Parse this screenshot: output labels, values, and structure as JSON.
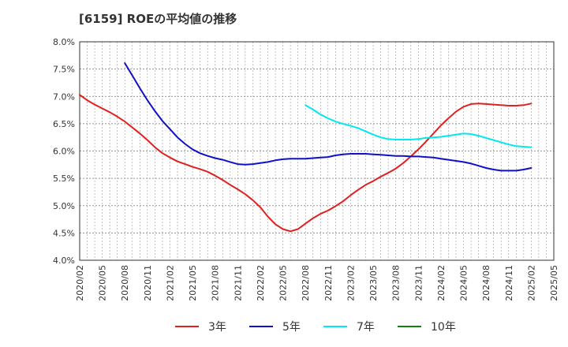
{
  "chart_data": {
    "type": "line",
    "title": "[6159]  ROEの平均値の推移",
    "ylim": [
      4.0,
      8.0
    ],
    "y_ticks": [
      "4.0%",
      "4.5%",
      "5.0%",
      "5.5%",
      "6.0%",
      "6.5%",
      "7.0%",
      "7.5%",
      "8.0%"
    ],
    "x_ticks": [
      "2020/02",
      "2020/05",
      "2020/08",
      "2020/11",
      "2021/02",
      "2021/05",
      "2021/08",
      "2021/11",
      "2022/02",
      "2022/05",
      "2022/08",
      "2022/11",
      "2023/02",
      "2023/05",
      "2023/08",
      "2023/11",
      "2024/02",
      "2024/05",
      "2024/08",
      "2024/11",
      "2025/02",
      "2025/05"
    ],
    "grid": true,
    "legend_position": "bottom",
    "series": [
      {
        "name": "3年",
        "color": "#e02020",
        "points": [
          [
            "2020/02",
            7.03
          ],
          [
            "2020/03",
            6.93
          ],
          [
            "2020/04",
            6.85
          ],
          [
            "2020/05",
            6.78
          ],
          [
            "2020/06",
            6.71
          ],
          [
            "2020/07",
            6.63
          ],
          [
            "2020/08",
            6.54
          ],
          [
            "2020/09",
            6.43
          ],
          [
            "2020/10",
            6.32
          ],
          [
            "2020/11",
            6.2
          ],
          [
            "2020/12",
            6.07
          ],
          [
            "2021/01",
            5.96
          ],
          [
            "2021/02",
            5.88
          ],
          [
            "2021/03",
            5.81
          ],
          [
            "2021/04",
            5.76
          ],
          [
            "2021/05",
            5.71
          ],
          [
            "2021/06",
            5.67
          ],
          [
            "2021/07",
            5.62
          ],
          [
            "2021/08",
            5.55
          ],
          [
            "2021/09",
            5.47
          ],
          [
            "2021/10",
            5.38
          ],
          [
            "2021/11",
            5.3
          ],
          [
            "2021/12",
            5.21
          ],
          [
            "2022/01",
            5.1
          ],
          [
            "2022/02",
            4.97
          ],
          [
            "2022/03",
            4.8
          ],
          [
            "2022/04",
            4.66
          ],
          [
            "2022/05",
            4.57
          ],
          [
            "2022/06",
            4.53
          ],
          [
            "2022/07",
            4.57
          ],
          [
            "2022/08",
            4.67
          ],
          [
            "2022/09",
            4.77
          ],
          [
            "2022/10",
            4.85
          ],
          [
            "2022/11",
            4.91
          ],
          [
            "2022/12",
            4.99
          ],
          [
            "2023/01",
            5.08
          ],
          [
            "2023/02",
            5.19
          ],
          [
            "2023/03",
            5.29
          ],
          [
            "2023/04",
            5.38
          ],
          [
            "2023/05",
            5.45
          ],
          [
            "2023/06",
            5.53
          ],
          [
            "2023/07",
            5.6
          ],
          [
            "2023/08",
            5.68
          ],
          [
            "2023/09",
            5.78
          ],
          [
            "2023/10",
            5.9
          ],
          [
            "2023/11",
            6.03
          ],
          [
            "2023/12",
            6.17
          ],
          [
            "2024/01",
            6.32
          ],
          [
            "2024/02",
            6.47
          ],
          [
            "2024/03",
            6.6
          ],
          [
            "2024/04",
            6.72
          ],
          [
            "2024/05",
            6.81
          ],
          [
            "2024/06",
            6.86
          ],
          [
            "2024/07",
            6.87
          ],
          [
            "2024/08",
            6.86
          ],
          [
            "2024/09",
            6.85
          ],
          [
            "2024/10",
            6.84
          ],
          [
            "2024/11",
            6.83
          ],
          [
            "2024/12",
            6.83
          ],
          [
            "2025/01",
            6.84
          ],
          [
            "2025/02",
            6.87
          ]
        ]
      },
      {
        "name": "5年",
        "color": "#1010c8",
        "points": [
          [
            "2020/08",
            7.61
          ],
          [
            "2020/09",
            7.38
          ],
          [
            "2020/10",
            7.15
          ],
          [
            "2020/11",
            6.93
          ],
          [
            "2020/12",
            6.73
          ],
          [
            "2021/01",
            6.55
          ],
          [
            "2021/02",
            6.4
          ],
          [
            "2021/03",
            6.25
          ],
          [
            "2021/04",
            6.13
          ],
          [
            "2021/05",
            6.03
          ],
          [
            "2021/06",
            5.96
          ],
          [
            "2021/07",
            5.91
          ],
          [
            "2021/08",
            5.87
          ],
          [
            "2021/09",
            5.84
          ],
          [
            "2021/10",
            5.8
          ],
          [
            "2021/11",
            5.76
          ],
          [
            "2021/12",
            5.75
          ],
          [
            "2022/01",
            5.76
          ],
          [
            "2022/02",
            5.78
          ],
          [
            "2022/03",
            5.8
          ],
          [
            "2022/04",
            5.83
          ],
          [
            "2022/05",
            5.85
          ],
          [
            "2022/06",
            5.86
          ],
          [
            "2022/07",
            5.86
          ],
          [
            "2022/08",
            5.86
          ],
          [
            "2022/09",
            5.87
          ],
          [
            "2022/10",
            5.88
          ],
          [
            "2022/11",
            5.89
          ],
          [
            "2022/12",
            5.92
          ],
          [
            "2023/01",
            5.94
          ],
          [
            "2023/02",
            5.95
          ],
          [
            "2023/03",
            5.95
          ],
          [
            "2023/04",
            5.95
          ],
          [
            "2023/05",
            5.94
          ],
          [
            "2023/06",
            5.93
          ],
          [
            "2023/07",
            5.92
          ],
          [
            "2023/08",
            5.91
          ],
          [
            "2023/09",
            5.91
          ],
          [
            "2023/10",
            5.9
          ],
          [
            "2023/11",
            5.9
          ],
          [
            "2023/12",
            5.89
          ],
          [
            "2024/01",
            5.88
          ],
          [
            "2024/02",
            5.86
          ],
          [
            "2024/03",
            5.84
          ],
          [
            "2024/04",
            5.82
          ],
          [
            "2024/05",
            5.8
          ],
          [
            "2024/06",
            5.77
          ],
          [
            "2024/07",
            5.73
          ],
          [
            "2024/08",
            5.69
          ],
          [
            "2024/09",
            5.66
          ],
          [
            "2024/10",
            5.64
          ],
          [
            "2024/11",
            5.64
          ],
          [
            "2024/12",
            5.64
          ],
          [
            "2025/01",
            5.66
          ],
          [
            "2025/02",
            5.69
          ]
        ]
      },
      {
        "name": "7年",
        "color": "#00e8f0",
        "points": [
          [
            "2022/08",
            6.84
          ],
          [
            "2022/09",
            6.76
          ],
          [
            "2022/10",
            6.67
          ],
          [
            "2022/11",
            6.6
          ],
          [
            "2022/12",
            6.54
          ],
          [
            "2023/01",
            6.5
          ],
          [
            "2023/02",
            6.46
          ],
          [
            "2023/03",
            6.42
          ],
          [
            "2023/04",
            6.36
          ],
          [
            "2023/05",
            6.3
          ],
          [
            "2023/06",
            6.25
          ],
          [
            "2023/07",
            6.22
          ],
          [
            "2023/08",
            6.21
          ],
          [
            "2023/09",
            6.21
          ],
          [
            "2023/10",
            6.21
          ],
          [
            "2023/11",
            6.22
          ],
          [
            "2023/12",
            6.24
          ],
          [
            "2024/01",
            6.25
          ],
          [
            "2024/02",
            6.26
          ],
          [
            "2024/03",
            6.28
          ],
          [
            "2024/04",
            6.3
          ],
          [
            "2024/05",
            6.32
          ],
          [
            "2024/06",
            6.31
          ],
          [
            "2024/07",
            6.28
          ],
          [
            "2024/08",
            6.24
          ],
          [
            "2024/09",
            6.2
          ],
          [
            "2024/10",
            6.16
          ],
          [
            "2024/11",
            6.12
          ],
          [
            "2024/12",
            6.09
          ],
          [
            "2025/01",
            6.08
          ],
          [
            "2025/02",
            6.07
          ]
        ]
      },
      {
        "name": "10年",
        "color": "#108010",
        "points": []
      }
    ]
  }
}
